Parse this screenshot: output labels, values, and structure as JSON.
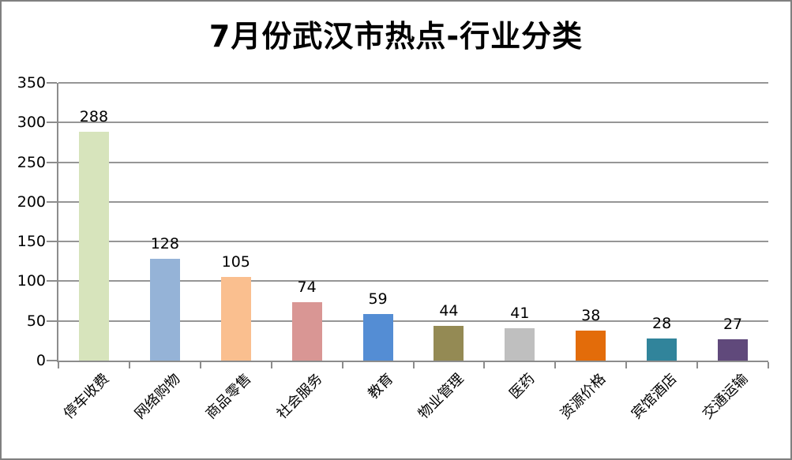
{
  "title": "7月份武汉市热点-行业分类",
  "chart_data": {
    "type": "bar",
    "title": "7月份武汉市热点-行业分类",
    "categories": [
      "停车收费",
      "网络购物",
      "商品零售",
      "社会服务",
      "教育",
      "物业管理",
      "医药",
      "资源价格",
      "宾馆酒店",
      "交通运输"
    ],
    "values": [
      288,
      128,
      105,
      74,
      59,
      44,
      41,
      38,
      28,
      27
    ],
    "bar_colors": [
      "#d7e4bc",
      "#95b3d7",
      "#fabf8f",
      "#d99694",
      "#548dd4",
      "#948a54",
      "#bfbfbf",
      "#e36c0a",
      "#31849b",
      "#60497b"
    ],
    "xlabel": "",
    "ylabel": "",
    "ylim": [
      0,
      350
    ],
    "yticks": [
      0,
      50,
      100,
      150,
      200,
      250,
      300,
      350
    ],
    "grid": true,
    "legend": false,
    "data_labels": true,
    "x_label_rotation_deg": 45,
    "gridline_color": "#969696",
    "axis_color": "#8c8c8c",
    "text_color": "#000000",
    "background_color": "#ffffff",
    "border_color": "#808080"
  }
}
